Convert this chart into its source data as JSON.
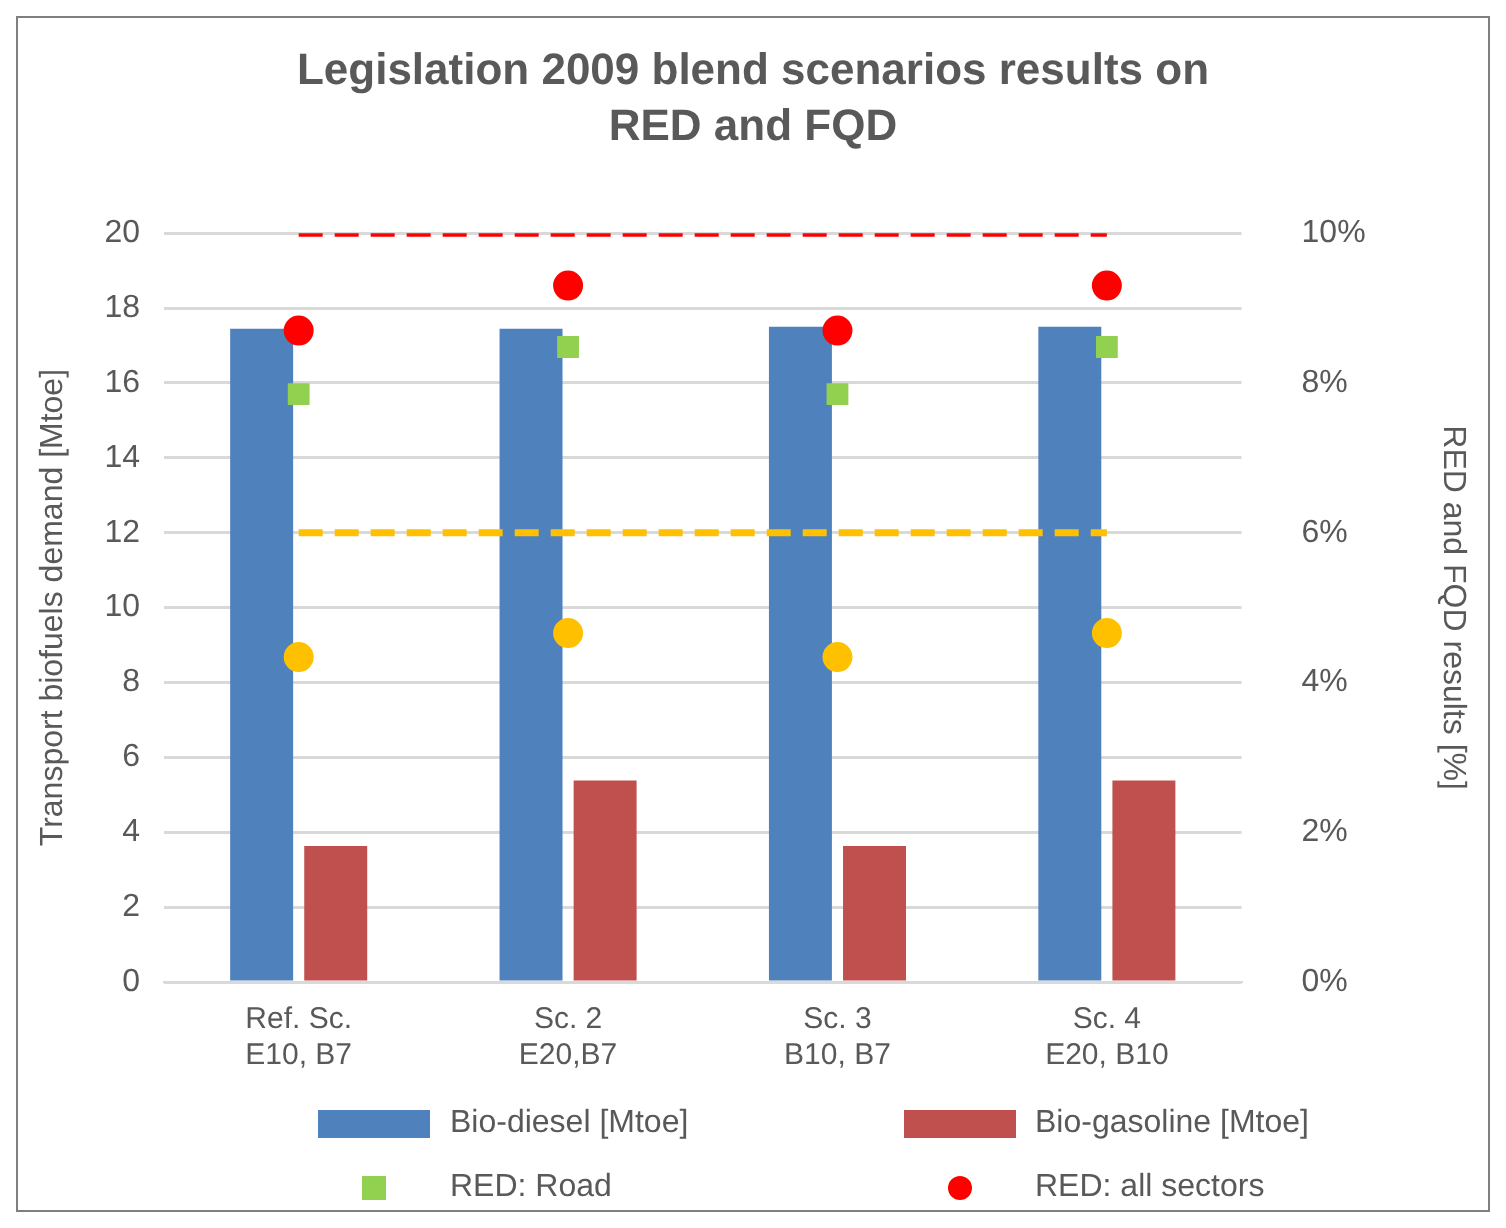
{
  "chart_data": {
    "type": "bar",
    "title": "Legislation 2009 blend scenarios results on RED and FQD",
    "ylabel": "Transport biofuels demand [Mtoe]",
    "y2label": "RED and FQD results [%]",
    "categories": [
      "Ref. Sc.\nE10, B7",
      "Sc. 2\nE20,B7",
      "Sc. 3\nB10, B7",
      "Sc. 4\nE20, B10"
    ],
    "series": [
      {
        "name": "Bio-diesel [Mtoe]",
        "color": "#4f81bd",
        "values": [
          17.45,
          17.45,
          17.5,
          17.5
        ]
      },
      {
        "name": "Bio-gasoline [Mtoe]",
        "color": "#c0504d",
        "values": [
          3.63,
          5.38,
          3.63,
          5.38
        ]
      },
      {
        "name": "RED: Road",
        "type": "scatter",
        "axis": "y2",
        "marker": "square",
        "color": "#92d050",
        "values": [
          7.85,
          8.48,
          7.85,
          8.48
        ]
      },
      {
        "name": "RED: all sectors",
        "type": "scatter",
        "axis": "y2",
        "marker": "circle",
        "color": "#ff0000",
        "values": [
          8.7,
          9.3,
          8.7,
          9.3
        ]
      },
      {
        "type": "scatter",
        "axis": "y2",
        "marker": "circle",
        "color": "#ffc000",
        "values": [
          4.34,
          4.66,
          4.34,
          4.66
        ]
      },
      {
        "type": "line",
        "axis": "y2",
        "marker": "none",
        "line_style": "dashed",
        "color": "#ff0000",
        "values": [
          10,
          10,
          10,
          10
        ]
      },
      {
        "type": "line",
        "axis": "y2",
        "marker": "none",
        "line_style": "dashed",
        "color": "#ffc000",
        "values": [
          6,
          6,
          6,
          6
        ]
      }
    ],
    "ylim": [
      0,
      20
    ],
    "yticks": [
      0,
      2,
      4,
      6,
      8,
      10,
      12,
      14,
      16,
      18,
      20
    ],
    "y2lim": [
      0,
      10
    ],
    "y2ticks": [
      {
        "value": 0,
        "label": "0%"
      },
      {
        "value": 2,
        "label": "2%"
      },
      {
        "value": 4,
        "label": "4%"
      },
      {
        "value": 6,
        "label": "6%"
      },
      {
        "value": 8,
        "label": "8%"
      },
      {
        "value": 10,
        "label": "10%"
      }
    ],
    "grid": "y",
    "legend": "bottom"
  }
}
